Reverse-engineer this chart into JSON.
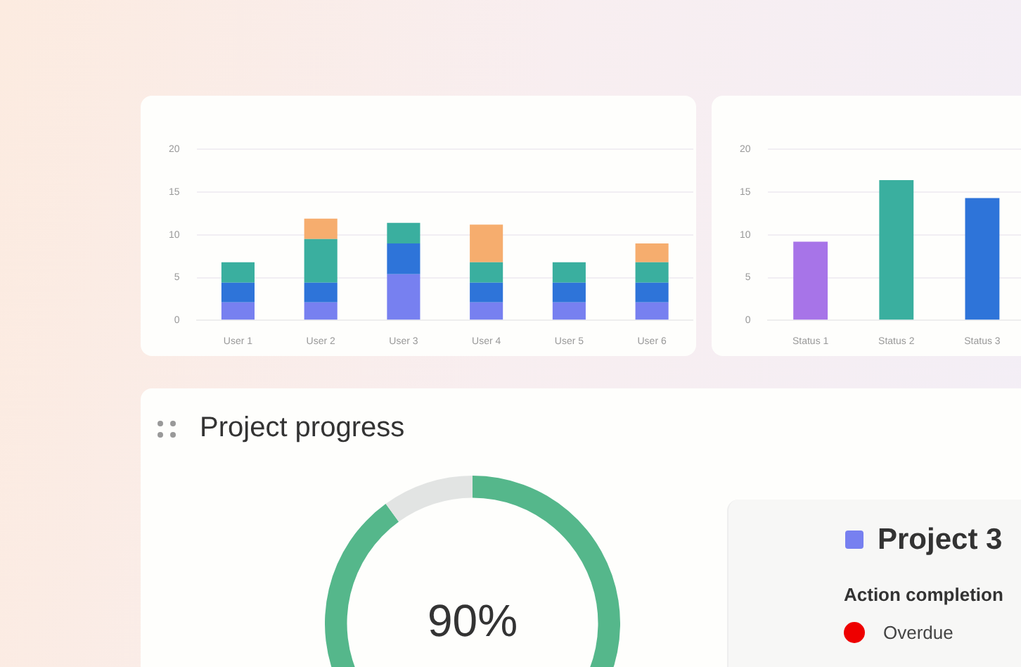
{
  "chart_data": [
    {
      "type": "bar",
      "stacked": true,
      "categories": [
        "User 1",
        "User 2",
        "User 3",
        "User 4",
        "User 5",
        "User 6"
      ],
      "series": [
        {
          "color": "#7780f0",
          "values": [
            2.1,
            2.1,
            5.4,
            2.1,
            2.1,
            2.1
          ]
        },
        {
          "color": "#2e74d9",
          "values": [
            2.3,
            2.3,
            3.6,
            2.3,
            2.3,
            2.3
          ]
        },
        {
          "color": "#3aaf9f",
          "values": [
            2.4,
            5.1,
            2.4,
            2.4,
            2.4,
            2.4
          ]
        },
        {
          "color": "#f6ad6e",
          "values": [
            0,
            2.4,
            0,
            4.4,
            0,
            2.2
          ]
        }
      ],
      "ylim": [
        0,
        20
      ],
      "yticks": [
        0,
        5,
        10,
        15,
        20
      ],
      "grid": "y"
    },
    {
      "type": "bar",
      "categories": [
        "Status 1",
        "Status 2",
        "Status 3"
      ],
      "values": [
        9.2,
        16.4,
        14.3
      ],
      "colors": [
        "#a774e8",
        "#3aaf9f",
        "#2e74d9"
      ],
      "ylim": [
        0,
        20
      ],
      "yticks": [
        0,
        5,
        10,
        15,
        20
      ],
      "grid": "y"
    },
    {
      "type": "donut",
      "title": "Project progress",
      "categories": [
        null,
        null
      ],
      "values": [
        90,
        10
      ],
      "colors": [
        "#55b78b",
        "#e2e4e3"
      ],
      "value_labels": [
        "90%",
        null
      ]
    },
    {
      "type": "other",
      "title": "Project 3",
      "subtitle": "Action completion",
      "annotations": [
        "Overdue"
      ]
    }
  ]
}
